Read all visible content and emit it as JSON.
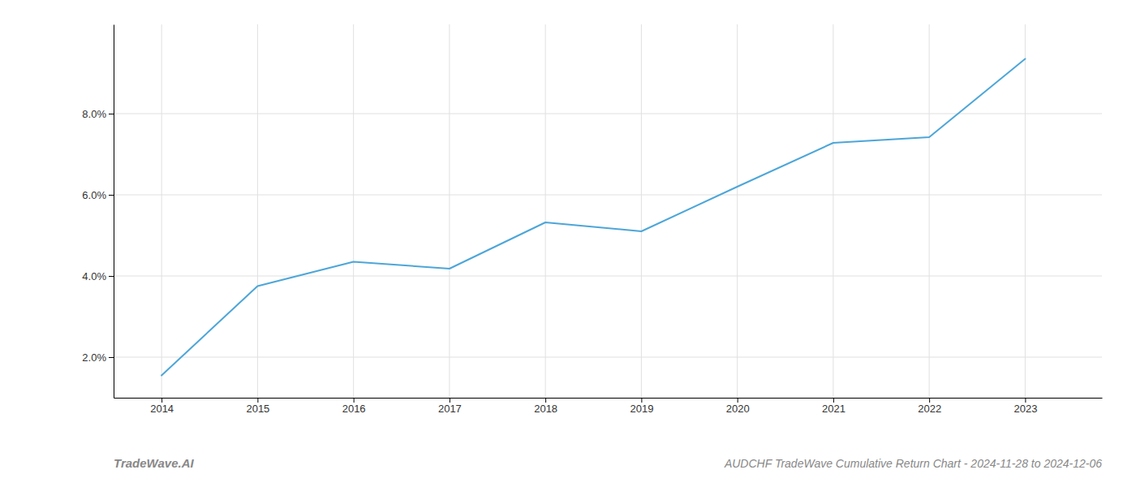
{
  "chart_data": {
    "type": "line",
    "title": "AUDCHF TradeWave Cumulative Return Chart - 2024-11-28 to 2024-12-06",
    "annotations": [
      "TradeWave.AI"
    ],
    "x": [
      2014,
      2015,
      2016,
      2017,
      2018,
      2019,
      2020,
      2021,
      2022,
      2023
    ],
    "values": [
      1.55,
      3.75,
      4.35,
      4.18,
      5.32,
      5.1,
      6.2,
      7.28,
      7.42,
      9.35
    ],
    "color": "#4da6d8",
    "xlim": [
      2013.5,
      2023.8
    ],
    "ylim": [
      1.0,
      10.2
    ],
    "xticks": [
      2014,
      2015,
      2016,
      2017,
      2018,
      2019,
      2020,
      2021,
      2022,
      2023
    ],
    "yticks": [
      {
        "value": 2.0,
        "label": "2.0%"
      },
      {
        "value": 4.0,
        "label": "4.0%"
      },
      {
        "value": 6.0,
        "label": "6.0%"
      },
      {
        "value": 8.0,
        "label": "8.0%"
      }
    ],
    "grid": true
  }
}
